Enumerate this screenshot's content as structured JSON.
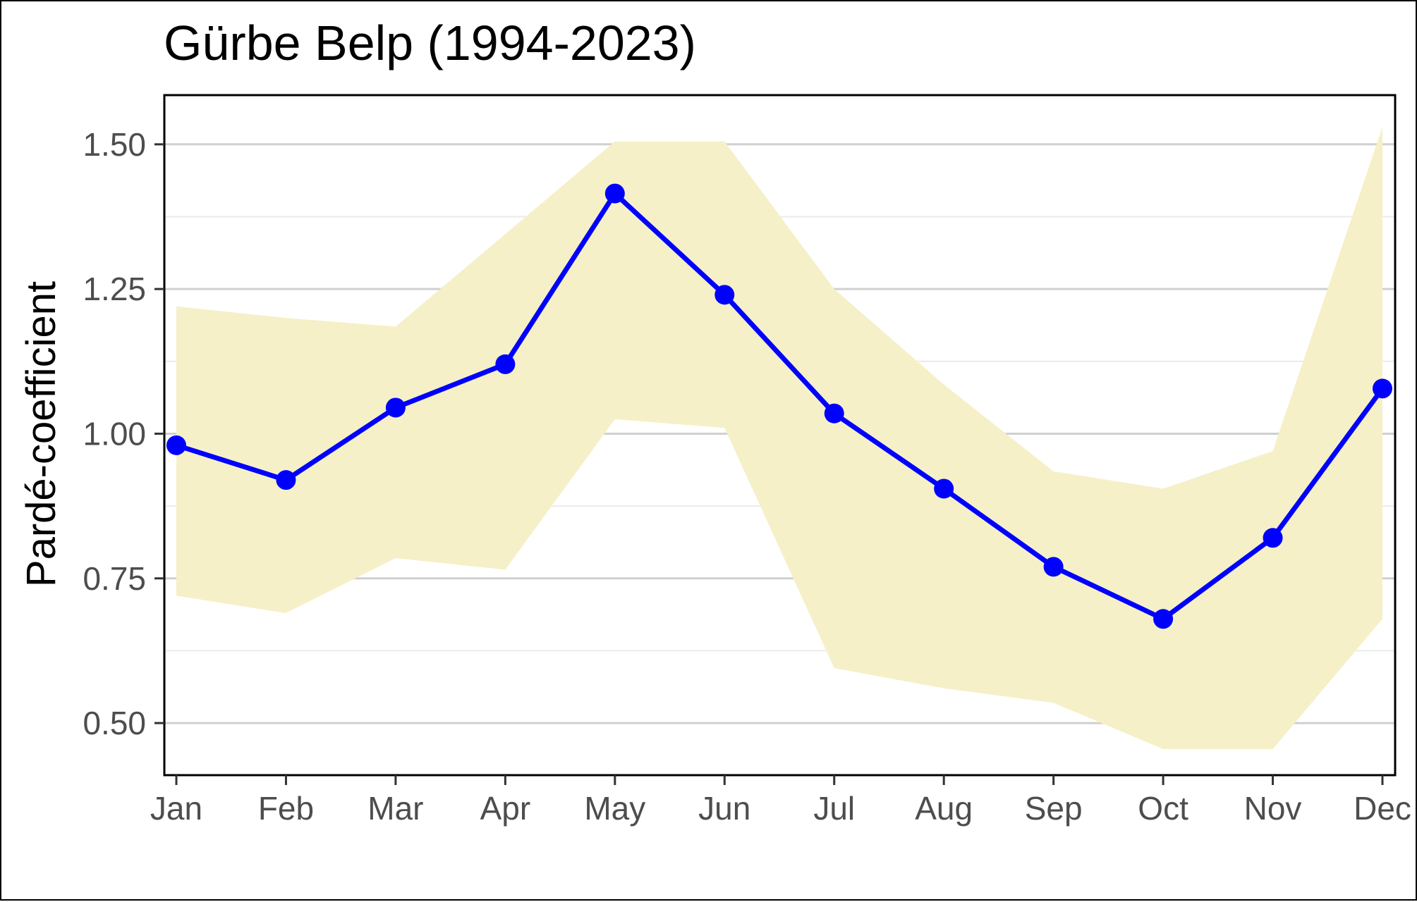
{
  "chart_data": {
    "type": "line",
    "title": "Gürbe Belp (1994-2023)",
    "xlabel": "",
    "ylabel": "Pardé-coefficient",
    "categories": [
      "Jan",
      "Feb",
      "Mar",
      "Apr",
      "May",
      "Jun",
      "Jul",
      "Aug",
      "Sep",
      "Oct",
      "Nov",
      "Dec"
    ],
    "series": [
      {
        "values": [
          0.98,
          0.92,
          1.045,
          1.12,
          1.415,
          1.24,
          1.035,
          0.905,
          0.77,
          0.68,
          0.82,
          1.078
        ],
        "color": "#0000ff"
      }
    ],
    "band": {
      "lower": [
        0.72,
        0.69,
        0.785,
        0.765,
        1.025,
        1.01,
        0.595,
        0.56,
        0.535,
        0.455,
        0.455,
        0.68
      ],
      "upper": [
        1.22,
        1.2,
        1.185,
        1.345,
        1.505,
        1.505,
        1.25,
        1.085,
        0.935,
        0.905,
        0.97,
        1.53
      ],
      "color": "#f5f0c8"
    },
    "ylim": [
      0.41,
      1.585
    ],
    "yticks": [
      0.5,
      0.75,
      1.0,
      1.25,
      1.5
    ],
    "ytick_labels": [
      "0.50",
      "0.75",
      "1.00",
      "1.25",
      "1.50"
    ],
    "grid": true,
    "legend": "none"
  }
}
